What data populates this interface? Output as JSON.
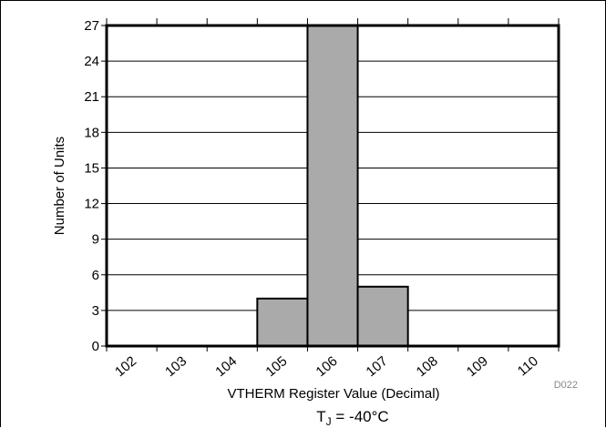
{
  "chart_data": {
    "type": "bar",
    "title": "",
    "xlabel": "VTHERM Register Value (Decimal)",
    "ylabel": "Number of Units",
    "categories": [
      "102",
      "103",
      "104",
      "105",
      "106",
      "107",
      "108",
      "109",
      "110"
    ],
    "values": [
      0,
      0,
      0,
      4,
      27,
      5,
      0,
      0,
      0
    ],
    "yticks": [
      0,
      3,
      6,
      9,
      12,
      15,
      18,
      21,
      24,
      27
    ],
    "ylim": [
      0,
      27
    ],
    "grid": true,
    "legend": "none",
    "bar_color": "#aaaaaa",
    "figure_code": "D022",
    "caption": {
      "main": "T",
      "sub": "J",
      "rest": " = -40°C"
    }
  }
}
